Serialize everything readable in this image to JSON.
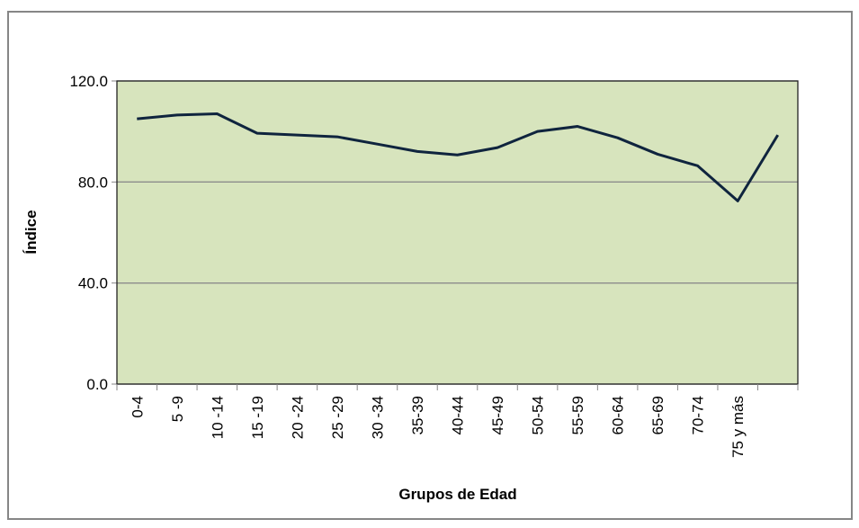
{
  "chart_data": {
    "type": "line",
    "x_label": "Grupos de Edad",
    "y_label": "Índice",
    "categories": [
      "0-4",
      "5 -9",
      "10 -14",
      "15 -19",
      "20 -24",
      "25 -29",
      "30 -34",
      "35-39",
      "40-44",
      "45-49",
      "50-54",
      "55-59",
      "60-64",
      "65-69",
      "70-74",
      "75 y más",
      null
    ],
    "series": [
      {
        "color": "#0f243e",
        "values": [
          105.0,
          106.5,
          107.0,
          99.3,
          98.6,
          97.9,
          95.0,
          92.1,
          90.7,
          93.6,
          100.0,
          102.0,
          97.5,
          91.0,
          86.4,
          72.5,
          98.6
        ]
      }
    ],
    "ylim": [
      0,
      120
    ],
    "yticks": [
      {
        "value": 0,
        "label": "0.0"
      },
      {
        "value": 40,
        "label": "40.0"
      },
      {
        "value": 80,
        "label": "80.0"
      },
      {
        "value": 120,
        "label": "120.0"
      }
    ],
    "grid": true,
    "background": "#d7e4bd"
  }
}
